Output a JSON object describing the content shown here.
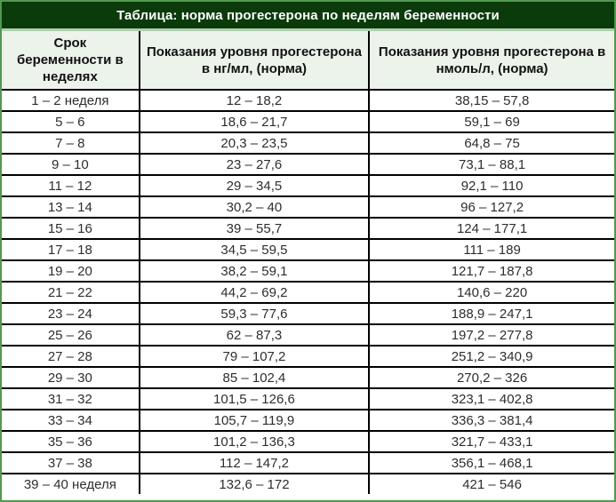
{
  "chart_data": {
    "type": "table",
    "title": "Таблица: норма прогестерона по неделям беременности",
    "columns": [
      "Срок беременности в неделях",
      "Показания уровня прогестерона в нг/мл, (норма)",
      "Показания уровня прогестерона в нмоль/л, (норма)"
    ],
    "rows": [
      [
        "1 – 2 неделя",
        "12 – 18,2",
        "38,15 – 57,8"
      ],
      [
        "5 – 6",
        "18,6 – 21,7",
        "59,1 – 69"
      ],
      [
        "7 – 8",
        "20,3 – 23,5",
        "64,8 – 75"
      ],
      [
        "9 – 10",
        "23 – 27,6",
        "73,1 – 88,1"
      ],
      [
        "11 – 12",
        "29 – 34,5",
        "92,1 – 110"
      ],
      [
        "13 – 14",
        "30,2 – 40",
        "96 – 127,2"
      ],
      [
        "15 – 16",
        "39 – 55,7",
        "124 – 177,1"
      ],
      [
        "17 – 18",
        "34,5 – 59,5",
        "111 – 189"
      ],
      [
        "19 – 20",
        "38,2 – 59,1",
        "121,7 – 187,8"
      ],
      [
        "21 – 22",
        "44,2 – 69,2",
        "140,6 – 220"
      ],
      [
        "23 – 24",
        "59,3 – 77,6",
        "188,9 – 247,1"
      ],
      [
        "25 – 26",
        "62 – 87,3",
        "197,2 – 277,8"
      ],
      [
        "27 – 28",
        "79 – 107,2",
        "251,2 – 340,9"
      ],
      [
        "29 – 30",
        "85 – 102,4",
        "270,2 – 326"
      ],
      [
        "31 – 32",
        "101,5 – 126,6",
        "323,1 – 402,8"
      ],
      [
        "33 – 34",
        "105,7 – 119,9",
        "336,3 – 381,4"
      ],
      [
        "35 – 36",
        "101,2 – 136,3",
        "321,7 – 433,1"
      ],
      [
        "37 – 38",
        "112 – 147,2",
        "356,1 – 468,1"
      ],
      [
        "39 – 40 неделя",
        "132,6 – 172",
        "421 – 546"
      ]
    ],
    "layout": {
      "legend": "none",
      "grid": "on",
      "header_rows": 1,
      "title_position": "top-banner"
    }
  },
  "colors": {
    "title_bg": "#0b3a0b",
    "title_text": "#ffffff",
    "title_separator": "#a9d3a9",
    "header_bg": "#ebf3eb",
    "header_text": "#111111",
    "cell_border": "#000000",
    "outer_frame": "#4f9a4f",
    "row_bg": "#ffffff",
    "cell_text": "#2e2e2e"
  }
}
